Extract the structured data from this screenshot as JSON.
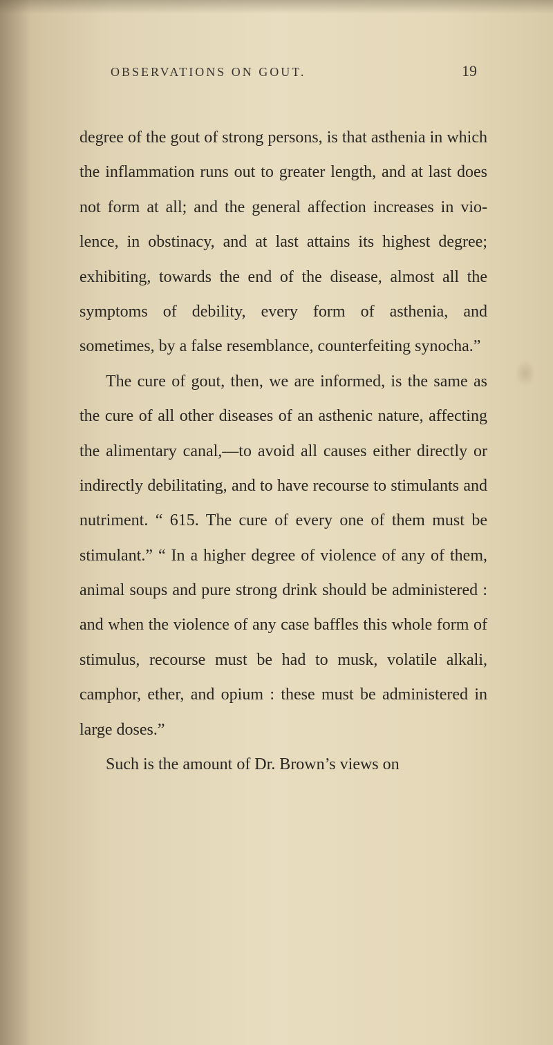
{
  "page": {
    "running_head": "OBSERVATIONS ON GOUT.",
    "page_number": "19",
    "paragraph1": "degree of the gout of strong persons, is that asthenia in which the inflammation runs out to greater length, and at last does not form at all; and the general affection increases in vio­lence, in obstinacy, and at last attains its highest degree; exhibiting, towards the end of the disease, almost all the symptoms of debility, every form of asthenia, and sometimes, by a false resemblance, counterfeiting synocha.”",
    "paragraph2": "The cure of gout, then, we are informed, is the same as the cure of all other diseases of an asthenic nature, affecting the alimentary canal,—to avoid all causes either directly or indirectly debilitating, and to have recourse to stimulants and nutriment. “ 615. The cure of every one of them must be stimulant.” “ In a higher de­gree of violence of any of them, animal soups and pure strong drink should be administered : and when the violence of any case baffles this whole form of stimulus, recourse must be had to musk, volatile alkali, camphor, ether, and opium : these must be administered in large doses.”",
    "paragraph3": "Such is the amount of Dr. Brown’s views on"
  },
  "colors": {
    "text": "#2a2622",
    "background_light": "#e8ddc0",
    "background_dark": "#c9b896"
  },
  "typography": {
    "body_fontsize": 24,
    "header_fontsize": 18,
    "line_height": 2.1,
    "font_family": "Georgia, Times New Roman, serif"
  }
}
